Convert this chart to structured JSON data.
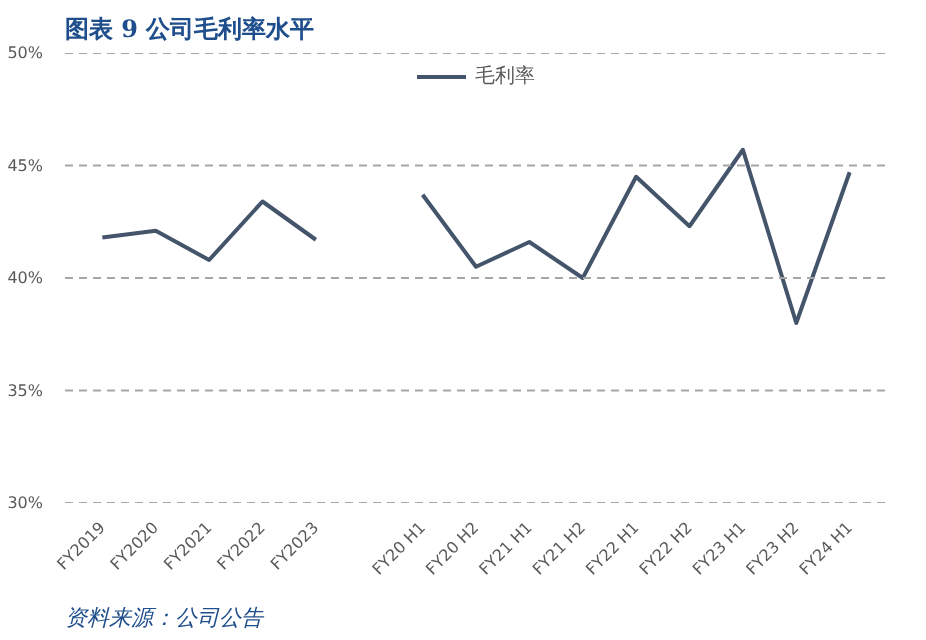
{
  "chart_data": {
    "type": "line",
    "title": "图表 9   公司毛利率水平",
    "categories": [
      "FY2019",
      "FY2020",
      "FY2021",
      "FY2022",
      "FY2023",
      null,
      "FY20 H1",
      "FY20 H2",
      "FY21 H1",
      "FY21 H2",
      "FY22 H1",
      "FY22 H2",
      "FY23 H1",
      "FY23 H2",
      "FY24 H1"
    ],
    "series": [
      {
        "name": "毛利率",
        "color": "#44546a",
        "values": [
          41.8,
          42.1,
          40.8,
          43.4,
          41.7,
          null,
          43.7,
          40.5,
          41.6,
          40.0,
          44.5,
          42.3,
          45.7,
          38.0,
          44.7
        ]
      }
    ],
    "ylim": [
      30,
      50
    ],
    "yticks": [
      {
        "value": 30,
        "label": "30%"
      },
      {
        "value": 35,
        "label": "35%"
      },
      {
        "value": 40,
        "label": "40%"
      },
      {
        "value": 45,
        "label": "45%"
      },
      {
        "value": 50,
        "label": "50%"
      }
    ],
    "grid": "y",
    "legend": "top",
    "marker": "none",
    "line_style": "solid",
    "annotations": [
      "资料来源：公司公告"
    ]
  }
}
